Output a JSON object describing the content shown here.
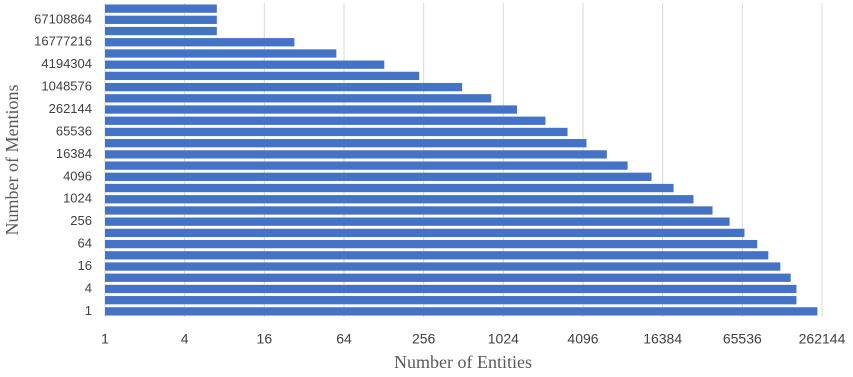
{
  "chart_data": {
    "type": "hbar",
    "x_label": "Number of Entities",
    "y_label": "Number of Mentions",
    "categories": [
      "1",
      null,
      "4",
      null,
      "16",
      null,
      "64",
      null,
      "256",
      null,
      "1024",
      null,
      "4096",
      null,
      "16384",
      null,
      "65536",
      null,
      "262144",
      null,
      "1048576",
      null,
      "4194304",
      null,
      "16777216",
      null,
      "67108864",
      null
    ],
    "values": [
      242000,
      168000,
      168000,
      152000,
      127000,
      103000,
      85000,
      68000,
      52500,
      39000,
      28000,
      19800,
      13500,
      8900,
      6200,
      4350,
      3130,
      2130,
      1300,
      830,
      500,
      237,
      129,
      56,
      27,
      7,
      7,
      7
    ],
    "color": "#4472c4",
    "xscale": "log",
    "xlim": [
      1,
      262144
    ],
    "xticks": [
      1,
      4,
      16,
      64,
      256,
      1024,
      4096,
      16384,
      65536,
      262144
    ],
    "grid": true
  }
}
